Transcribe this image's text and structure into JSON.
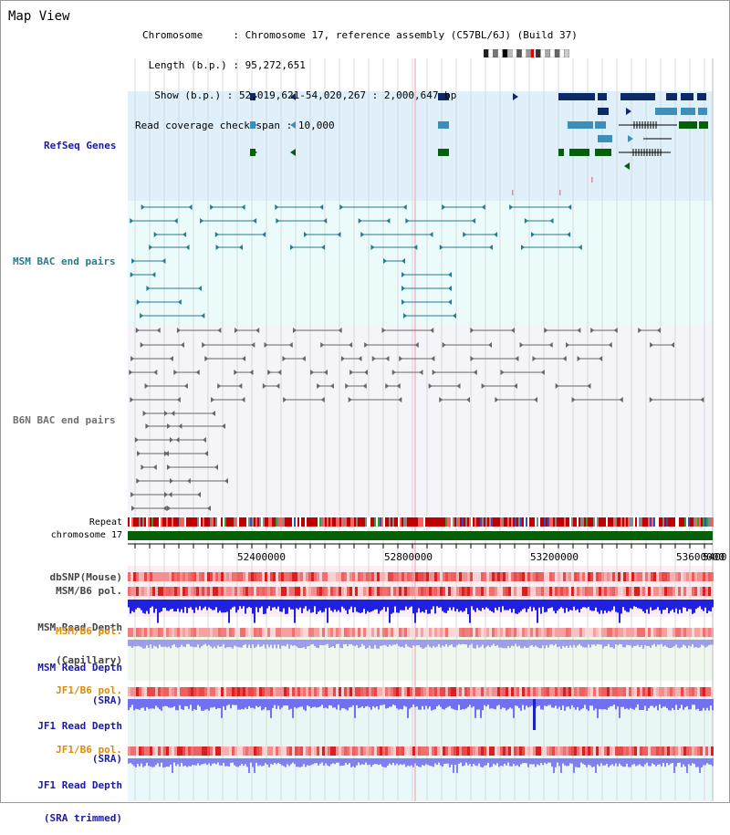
{
  "view_title": "Map View",
  "info": {
    "chromosome_label": "Chromosome",
    "chromosome_value": "Chromosome 17, reference assembly (C57BL/6J) (Build 37)",
    "length_label": "Length (b.p.)",
    "length_value": "95,272,651",
    "show_label": "Show (b.p.)",
    "show_value": "52,019,621-54,020,267 : 2,000,647 bp",
    "span_label": "Read coverage check span",
    "span_value": "10,000"
  },
  "tracks": {
    "refseq": "RefSeq Genes",
    "msm_bac": "MSM BAC end pairs",
    "b6n_bac": "B6N BAC end pairs",
    "repeat": "Repeat",
    "chromosome": "chromosome 17",
    "dbsnp": "dbSNP(Mouse)",
    "msm_b6_pol": "MSM/B6 pol.",
    "msm_depth_cap_1": "MSM Read Depth",
    "msm_depth_cap_2": "(Capillary)",
    "msm_b6_pol2": "MSM/B6 pol.",
    "msm_depth_sra_1": "MSM Read Depth",
    "msm_depth_sra_2": "(SRA)",
    "jf1_b6_pol": "JF1/B6 pol.",
    "jf1_depth_sra_1": "JF1 Read Depth",
    "jf1_depth_sra_2": "(SRA)",
    "jf1_b6_pol2": "JF1/B6 pol.",
    "jf1_depth_trim_1": "JF1 Read Depth",
    "jf1_depth_trim_2": "(SRA trimmed)"
  },
  "axis_ticks": [
    "52400000",
    "52800000",
    "53200000",
    "53600000",
    "5400"
  ],
  "colors": {
    "refseq_bg": "#dff0fb",
    "msm_bg": "#ebfbfb",
    "b6n_bg": "#f4f4fa",
    "gene_navy": "#0b2a66",
    "gene_teal": "#3b90bb",
    "gene_green": "#056008",
    "msm_line": "#277b8c",
    "b6n_line": "#666666",
    "label_blue": "#1a1aa6",
    "label_teal": "#277b8c",
    "label_gray": "#707070",
    "label_orange": "#e08a00",
    "depth_blue": "#2020e0",
    "depth_lightblue": "#7070f0"
  }
}
